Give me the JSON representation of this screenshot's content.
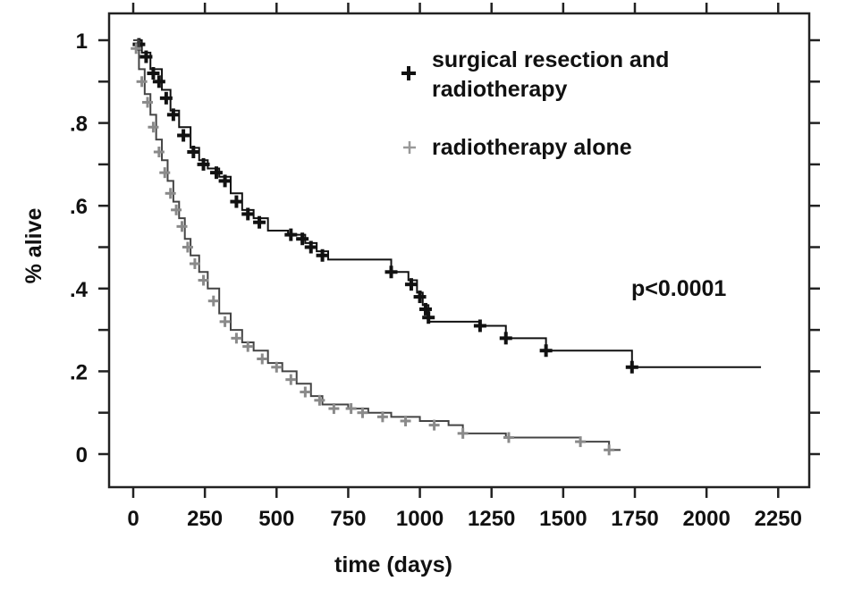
{
  "chart_data": {
    "type": "line",
    "subtype": "kaplan-meier",
    "title": "",
    "xlabel": "time (days)",
    "ylabel": "% alive",
    "xlim": [
      0,
      2250
    ],
    "ylim": [
      0,
      1
    ],
    "xticks": [
      "0",
      "250",
      "500",
      "750",
      "1000",
      "1250",
      "1500",
      "1750",
      "2000",
      "2250"
    ],
    "xtick_values": [
      0,
      250,
      500,
      750,
      1000,
      1250,
      1500,
      1750,
      2000,
      2250
    ],
    "yticks": [
      "0",
      ".2",
      ".4",
      ".6",
      ".8",
      "1"
    ],
    "ytick_values": [
      0,
      0.2,
      0.4,
      0.6,
      0.8,
      1
    ],
    "grid": false,
    "legend_position": "top-right",
    "annotation": "p<0.0001",
    "series": [
      {
        "name": "surgical resection and radiotherapy",
        "legend_lines": [
          "surgical resection and",
          "radiotherapy"
        ],
        "color": "#111111",
        "points": [
          [
            0,
            1
          ],
          [
            30,
            0.97
          ],
          [
            60,
            0.93
          ],
          [
            100,
            0.88
          ],
          [
            130,
            0.83
          ],
          [
            160,
            0.79
          ],
          [
            200,
            0.74
          ],
          [
            230,
            0.71
          ],
          [
            260,
            0.69
          ],
          [
            300,
            0.67
          ],
          [
            340,
            0.63
          ],
          [
            380,
            0.59
          ],
          [
            420,
            0.57
          ],
          [
            470,
            0.54
          ],
          [
            540,
            0.53
          ],
          [
            600,
            0.51
          ],
          [
            640,
            0.49
          ],
          [
            680,
            0.47
          ],
          [
            900,
            0.44
          ],
          [
            960,
            0.42
          ],
          [
            990,
            0.39
          ],
          [
            1010,
            0.36
          ],
          [
            1030,
            0.32
          ],
          [
            1210,
            0.31
          ],
          [
            1300,
            0.28
          ],
          [
            1440,
            0.25
          ],
          [
            1740,
            0.21
          ],
          [
            2190,
            0.21
          ]
        ],
        "censored": [
          [
            20,
            0.99
          ],
          [
            45,
            0.96
          ],
          [
            70,
            0.92
          ],
          [
            90,
            0.9
          ],
          [
            115,
            0.86
          ],
          [
            140,
            0.82
          ],
          [
            175,
            0.77
          ],
          [
            210,
            0.73
          ],
          [
            245,
            0.7
          ],
          [
            290,
            0.68
          ],
          [
            320,
            0.66
          ],
          [
            360,
            0.61
          ],
          [
            400,
            0.58
          ],
          [
            440,
            0.56
          ],
          [
            550,
            0.53
          ],
          [
            590,
            0.52
          ],
          [
            620,
            0.5
          ],
          [
            660,
            0.48
          ],
          [
            900,
            0.44
          ],
          [
            970,
            0.41
          ],
          [
            1000,
            0.38
          ],
          [
            1020,
            0.35
          ],
          [
            1030,
            0.33
          ],
          [
            1210,
            0.31
          ],
          [
            1300,
            0.28
          ],
          [
            1440,
            0.25
          ],
          [
            1740,
            0.21
          ]
        ]
      },
      {
        "name": "radiotherapy alone",
        "legend_lines": [
          "radiotherapy alone"
        ],
        "color": "#8a8a8a",
        "points": [
          [
            0,
            1
          ],
          [
            20,
            0.93
          ],
          [
            40,
            0.87
          ],
          [
            60,
            0.82
          ],
          [
            80,
            0.76
          ],
          [
            100,
            0.71
          ],
          [
            120,
            0.66
          ],
          [
            140,
            0.61
          ],
          [
            160,
            0.57
          ],
          [
            180,
            0.52
          ],
          [
            200,
            0.48
          ],
          [
            230,
            0.44
          ],
          [
            260,
            0.4
          ],
          [
            300,
            0.34
          ],
          [
            340,
            0.3
          ],
          [
            380,
            0.27
          ],
          [
            420,
            0.25
          ],
          [
            470,
            0.22
          ],
          [
            520,
            0.2
          ],
          [
            570,
            0.17
          ],
          [
            620,
            0.14
          ],
          [
            660,
            0.12
          ],
          [
            750,
            0.11
          ],
          [
            820,
            0.1
          ],
          [
            900,
            0.09
          ],
          [
            1000,
            0.08
          ],
          [
            1100,
            0.07
          ],
          [
            1150,
            0.05
          ],
          [
            1300,
            0.04
          ],
          [
            1560,
            0.03
          ],
          [
            1660,
            0.01
          ],
          [
            1700,
            0.01
          ]
        ],
        "censored": [
          [
            10,
            0.98
          ],
          [
            30,
            0.9
          ],
          [
            50,
            0.85
          ],
          [
            70,
            0.79
          ],
          [
            90,
            0.73
          ],
          [
            110,
            0.68
          ],
          [
            130,
            0.63
          ],
          [
            150,
            0.59
          ],
          [
            170,
            0.55
          ],
          [
            190,
            0.5
          ],
          [
            215,
            0.46
          ],
          [
            245,
            0.42
          ],
          [
            280,
            0.37
          ],
          [
            320,
            0.32
          ],
          [
            360,
            0.28
          ],
          [
            400,
            0.26
          ],
          [
            450,
            0.23
          ],
          [
            500,
            0.21
          ],
          [
            550,
            0.18
          ],
          [
            600,
            0.15
          ],
          [
            650,
            0.13
          ],
          [
            700,
            0.11
          ],
          [
            760,
            0.11
          ],
          [
            800,
            0.1
          ],
          [
            870,
            0.09
          ],
          [
            950,
            0.08
          ],
          [
            1050,
            0.07
          ],
          [
            1150,
            0.05
          ],
          [
            1310,
            0.04
          ],
          [
            1560,
            0.03
          ],
          [
            1660,
            0.01
          ]
        ]
      }
    ]
  }
}
